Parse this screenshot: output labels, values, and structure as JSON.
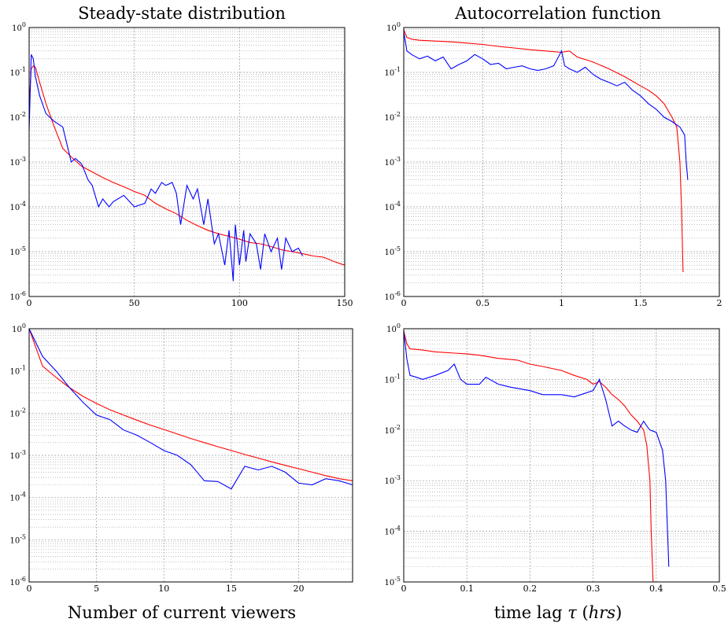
{
  "titles": {
    "left": "Steady-state distribution",
    "right": "Autocorrelation function"
  },
  "xlabels": {
    "left": "Number of current viewers",
    "right_prefix": "time lag ",
    "right_symbol": "τ",
    "right_unit_open": " (",
    "right_unit": "hrs",
    "right_unit_close": ")"
  },
  "colors": {
    "series_a": "#ff0000",
    "series_b": "#0000ff",
    "grid": "#9a9a9a"
  },
  "chart_data": [
    {
      "type": "line",
      "panel": "top-left",
      "title": "Steady-state distribution",
      "xlim": [
        0,
        150
      ],
      "ylim": [
        1e-06,
        1
      ],
      "yscale": "log",
      "grid": true,
      "xticks": [
        0,
        50,
        100,
        150
      ],
      "yticks": [
        "10^0",
        "10^-1",
        "10^-2",
        "10^-3",
        "10^-4",
        "10^-5",
        "10^-6"
      ],
      "series": [
        {
          "color": "red",
          "x": [
            0,
            1,
            2,
            3,
            5,
            8,
            12,
            16,
            20,
            25,
            30,
            35,
            40,
            45,
            50,
            55,
            60,
            65,
            70,
            75,
            80,
            85,
            90,
            95,
            100,
            105,
            110,
            115,
            120,
            125,
            130,
            135,
            140,
            145,
            150
          ],
          "y": [
            0.02,
            0.12,
            0.14,
            0.13,
            0.06,
            0.02,
            0.006,
            0.002,
            0.0013,
            0.0008,
            0.0006,
            0.00045,
            0.00035,
            0.00028,
            0.00022,
            0.00018,
            0.00012,
            9e-05,
            7e-05,
            5e-05,
            3.8e-05,
            3e-05,
            2.5e-05,
            2.2e-05,
            1.9e-05,
            1.6e-05,
            1.5e-05,
            1.3e-05,
            1.1e-05,
            1e-05,
            9e-06,
            8e-06,
            7.5e-06,
            6e-06,
            5e-06
          ]
        },
        {
          "color": "blue",
          "x": [
            0,
            1,
            2,
            3,
            5,
            8,
            12,
            16,
            20,
            22,
            25,
            28,
            30,
            33,
            35,
            38,
            40,
            45,
            50,
            55,
            58,
            60,
            63,
            65,
            68,
            70,
            72,
            75,
            78,
            80,
            83,
            85,
            88,
            90,
            93,
            95,
            97,
            98,
            100,
            102,
            103,
            105,
            108,
            110,
            112,
            115,
            118,
            120,
            122,
            125,
            128,
            130
          ],
          "y": [
            0.005,
            0.25,
            0.2,
            0.08,
            0.03,
            0.012,
            0.008,
            0.006,
            0.001,
            0.0012,
            0.0009,
            0.0004,
            0.0003,
            0.0001,
            0.00015,
            0.0001,
            0.00013,
            0.00018,
            0.0001,
            0.00012,
            0.00025,
            0.0002,
            0.00035,
            0.0003,
            0.00035,
            0.0002,
            4e-05,
            0.0003,
            0.00015,
            0.00025,
            4e-05,
            0.00015,
            1.5e-05,
            2.5e-05,
            5e-06,
            3e-05,
            2.2e-06,
            4e-05,
            5e-06,
            3e-05,
            6e-06,
            2.5e-05,
            1.5e-05,
            4e-06,
            2.5e-05,
            1e-05,
            2e-05,
            4e-06,
            2e-05,
            1e-05,
            1.2e-05,
            8e-06
          ]
        }
      ]
    },
    {
      "type": "line",
      "panel": "top-right",
      "title": "Autocorrelation function",
      "xlim": [
        0,
        2
      ],
      "ylim": [
        1e-06,
        1
      ],
      "yscale": "log",
      "grid": true,
      "xticks": [
        0,
        0.5,
        1,
        1.5,
        2
      ],
      "yticks": [
        "10^0",
        "10^-1",
        "10^-2",
        "10^-3",
        "10^-4",
        "10^-5",
        "10^-6"
      ],
      "series": [
        {
          "color": "red",
          "x": [
            0,
            0.02,
            0.05,
            0.1,
            0.2,
            0.3,
            0.4,
            0.5,
            0.6,
            0.7,
            0.8,
            0.9,
            1.0,
            1.05,
            1.1,
            1.2,
            1.3,
            1.4,
            1.5,
            1.55,
            1.6,
            1.65,
            1.7,
            1.73,
            1.75,
            1.76,
            1.77
          ],
          "y": [
            0.9,
            0.6,
            0.55,
            0.52,
            0.5,
            0.48,
            0.45,
            0.42,
            0.38,
            0.35,
            0.32,
            0.3,
            0.28,
            0.3,
            0.22,
            0.17,
            0.12,
            0.08,
            0.05,
            0.04,
            0.03,
            0.02,
            0.01,
            0.006,
            0.001,
            0.0001,
            3.5e-06
          ]
        },
        {
          "color": "blue",
          "x": [
            0,
            0.02,
            0.05,
            0.1,
            0.15,
            0.2,
            0.25,
            0.3,
            0.35,
            0.4,
            0.45,
            0.5,
            0.55,
            0.6,
            0.65,
            0.7,
            0.75,
            0.8,
            0.85,
            0.9,
            0.95,
            1.0,
            1.02,
            1.05,
            1.1,
            1.15,
            1.2,
            1.25,
            1.3,
            1.35,
            1.4,
            1.45,
            1.5,
            1.55,
            1.6,
            1.65,
            1.7,
            1.75,
            1.78,
            1.79,
            1.8
          ],
          "y": [
            0.8,
            0.3,
            0.25,
            0.2,
            0.23,
            0.18,
            0.22,
            0.12,
            0.15,
            0.18,
            0.25,
            0.2,
            0.15,
            0.16,
            0.12,
            0.13,
            0.14,
            0.12,
            0.11,
            0.12,
            0.14,
            0.3,
            0.14,
            0.12,
            0.1,
            0.13,
            0.09,
            0.07,
            0.06,
            0.05,
            0.06,
            0.04,
            0.03,
            0.02,
            0.015,
            0.01,
            0.008,
            0.006,
            0.004,
            0.001,
            0.0004
          ]
        }
      ]
    },
    {
      "type": "line",
      "panel": "bottom-left",
      "xlabel": "Number of current viewers",
      "xlim": [
        0,
        24
      ],
      "ylim": [
        1e-06,
        1
      ],
      "yscale": "log",
      "grid": true,
      "xticks": [
        0,
        5,
        10,
        15,
        20
      ],
      "yticks": [
        "10^0",
        "10^-1",
        "10^-2",
        "10^-3",
        "10^-4",
        "10^-5",
        "10^-6"
      ],
      "series": [
        {
          "color": "red",
          "x": [
            0,
            1,
            2,
            3,
            4,
            5,
            6,
            7,
            8,
            9,
            10,
            11,
            12,
            13,
            14,
            15,
            16,
            17,
            18,
            19,
            20,
            21,
            22,
            23,
            24
          ],
          "y": [
            1,
            0.13,
            0.07,
            0.04,
            0.025,
            0.017,
            0.012,
            0.009,
            0.0068,
            0.0052,
            0.0041,
            0.0032,
            0.0025,
            0.002,
            0.0016,
            0.0013,
            0.00105,
            0.00086,
            0.0007,
            0.00058,
            0.00048,
            0.0004,
            0.00033,
            0.00028,
            0.00025
          ]
        },
        {
          "color": "blue",
          "x": [
            0,
            1,
            2,
            3,
            4,
            5,
            6,
            7,
            8,
            9,
            10,
            11,
            12,
            13,
            14,
            15,
            16,
            17,
            18,
            19,
            20,
            21,
            22,
            23,
            24
          ],
          "y": [
            1,
            0.22,
            0.1,
            0.04,
            0.018,
            0.009,
            0.007,
            0.004,
            0.003,
            0.002,
            0.0013,
            0.001,
            0.0006,
            0.00025,
            0.00024,
            0.00016,
            0.00055,
            0.00045,
            0.00055,
            0.0004,
            0.00022,
            0.0002,
            0.00028,
            0.00025,
            0.0002
          ]
        }
      ]
    },
    {
      "type": "line",
      "panel": "bottom-right",
      "xlabel": "time lag τ (hrs)",
      "xlim": [
        0,
        0.5
      ],
      "ylim": [
        1e-05,
        1
      ],
      "yscale": "log",
      "grid": true,
      "xticks": [
        0,
        0.1,
        0.2,
        0.3,
        0.4,
        0.5
      ],
      "yticks": [
        "10^0",
        "10^-1",
        "10^-2",
        "10^-3",
        "10^-4",
        "10^-5"
      ],
      "series": [
        {
          "color": "red",
          "x": [
            0,
            0.005,
            0.01,
            0.03,
            0.05,
            0.08,
            0.1,
            0.12,
            0.15,
            0.18,
            0.2,
            0.22,
            0.25,
            0.27,
            0.29,
            0.3,
            0.31,
            0.32,
            0.33,
            0.34,
            0.35,
            0.36,
            0.37,
            0.38,
            0.385,
            0.39,
            0.392,
            0.395
          ],
          "y": [
            0.9,
            0.5,
            0.4,
            0.38,
            0.35,
            0.33,
            0.32,
            0.3,
            0.26,
            0.24,
            0.2,
            0.18,
            0.15,
            0.12,
            0.1,
            0.08,
            0.09,
            0.07,
            0.05,
            0.04,
            0.03,
            0.02,
            0.015,
            0.01,
            0.005,
            0.001,
            0.0001,
            1e-05
          ]
        },
        {
          "color": "blue",
          "x": [
            0,
            0.005,
            0.01,
            0.02,
            0.03,
            0.05,
            0.07,
            0.08,
            0.09,
            0.1,
            0.12,
            0.13,
            0.15,
            0.17,
            0.2,
            0.22,
            0.25,
            0.27,
            0.3,
            0.31,
            0.32,
            0.33,
            0.34,
            0.35,
            0.36,
            0.37,
            0.38,
            0.385,
            0.39,
            0.4,
            0.41,
            0.415,
            0.42
          ],
          "y": [
            0.9,
            0.25,
            0.12,
            0.11,
            0.1,
            0.12,
            0.15,
            0.2,
            0.1,
            0.08,
            0.08,
            0.11,
            0.08,
            0.07,
            0.06,
            0.05,
            0.05,
            0.045,
            0.06,
            0.1,
            0.04,
            0.012,
            0.015,
            0.012,
            0.01,
            0.009,
            0.015,
            0.012,
            0.01,
            0.009,
            0.004,
            0.001,
            2e-05
          ]
        }
      ]
    }
  ]
}
